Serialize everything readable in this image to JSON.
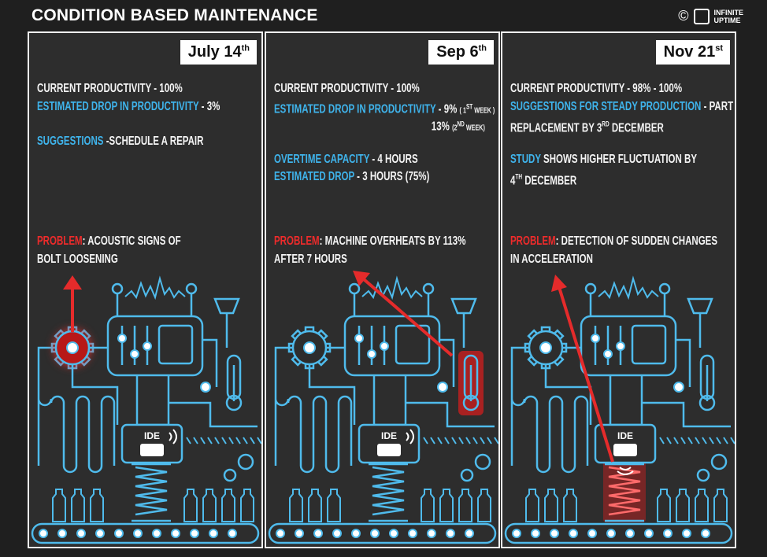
{
  "header": {
    "title": "CONDITION BASED MAINTENANCE",
    "copyright": "©",
    "logo": [
      "INFINITE",
      "UPTIME"
    ]
  },
  "panels": [
    {
      "date": {
        "text": "July 14",
        "sup": "th"
      },
      "info": [
        [
          [
            {
              "text": "CURRENT PRODUCTIVITY - 100%",
              "tone": "white"
            }
          ],
          [
            {
              "text": "ESTIMATED DROP IN PRODUCTIVITY",
              "tone": "blue"
            },
            {
              "text": " - 3%",
              "tone": "white"
            }
          ]
        ],
        [
          [
            {
              "text": "SUGGESTIONS",
              "tone": "blue"
            },
            {
              "text": " -SCHEDULE A REPAIR",
              "tone": "white"
            }
          ]
        ]
      ],
      "problem": [
        [
          {
            "text": "PROBLEM",
            "tone": "red"
          },
          {
            "text": ": ACOUSTIC SIGNS OF",
            "tone": "white"
          }
        ],
        [
          {
            "text": "BOLT LOOSENING",
            "tone": "white"
          }
        ]
      ],
      "device": "IDE"
    },
    {
      "date": {
        "text": "Sep 6",
        "sup": "th"
      },
      "info": [
        [
          [
            {
              "text": "CURRENT PRODUCTIVITY - 100%",
              "tone": "white"
            }
          ],
          [
            {
              "text": "ESTIMATED DROP IN PRODUCTIVITY",
              "tone": "blue"
            },
            {
              "text": " - 9% ",
              "tone": "white"
            },
            {
              "text": "( 1",
              "tone": "white",
              "small": true
            },
            {
              "text": "ST",
              "tone": "white",
              "small": true,
              "sup": true
            },
            {
              "text": " WEEK )",
              "tone": "white",
              "small": true
            }
          ],
          [
            {
              "text": "13% ",
              "tone": "white"
            },
            {
              "text": "(2",
              "tone": "white",
              "small": true
            },
            {
              "text": "ND",
              "tone": "white",
              "small": true,
              "sup": true
            },
            {
              "text": " WEEK)",
              "tone": "white",
              "small": true
            }
          ]
        ],
        [
          [
            {
              "text": "OVERTIME CAPACITY",
              "tone": "blue"
            },
            {
              "text": " - 4 HOURS",
              "tone": "white"
            }
          ],
          [
            {
              "text": "ESTIMATED DROP",
              "tone": "blue"
            },
            {
              "text": " - 3 HOURS (75%)",
              "tone": "white"
            }
          ]
        ]
      ],
      "problem": [
        [
          {
            "text": "PROBLEM",
            "tone": "red"
          },
          {
            "text": ": MACHINE OVERHEATS BY 113%",
            "tone": "white"
          }
        ],
        [
          {
            "text": "AFTER 7 HOURS",
            "tone": "white"
          }
        ]
      ],
      "device": "IDE"
    },
    {
      "date": {
        "text": "Nov 21",
        "sup": "st"
      },
      "info": [
        [
          [
            {
              "text": "CURRENT PRODUCTIVITY - 98% - 100%",
              "tone": "white"
            }
          ],
          [
            {
              "text": "SUGGESTIONS FOR STEADY PRODUCTION",
              "tone": "blue"
            },
            {
              "text": " - PART",
              "tone": "white"
            }
          ],
          [
            {
              "text": "REPLACEMENT BY 3",
              "tone": "white"
            },
            {
              "text": "RD",
              "tone": "white",
              "sup": true
            },
            {
              "text": " DECEMBER",
              "tone": "white"
            }
          ]
        ],
        [
          [
            {
              "text": "STUDY",
              "tone": "blue"
            },
            {
              "text": " SHOWS HIGHER FLUCTUATION BY",
              "tone": "white"
            }
          ],
          [
            {
              "text": "4",
              "tone": "white"
            },
            {
              "text": "TH",
              "tone": "white",
              "sup": true
            },
            {
              "text": " DECEMBER",
              "tone": "white"
            }
          ]
        ]
      ],
      "problem": [
        [
          {
            "text": "PROBLEM",
            "tone": "red"
          },
          {
            "text": ": DETECTION OF SUDDEN CHANGES",
            "tone": "white"
          }
        ],
        [
          {
            "text": "IN ACCELERATION",
            "tone": "white"
          }
        ]
      ],
      "device": "IDE"
    }
  ]
}
